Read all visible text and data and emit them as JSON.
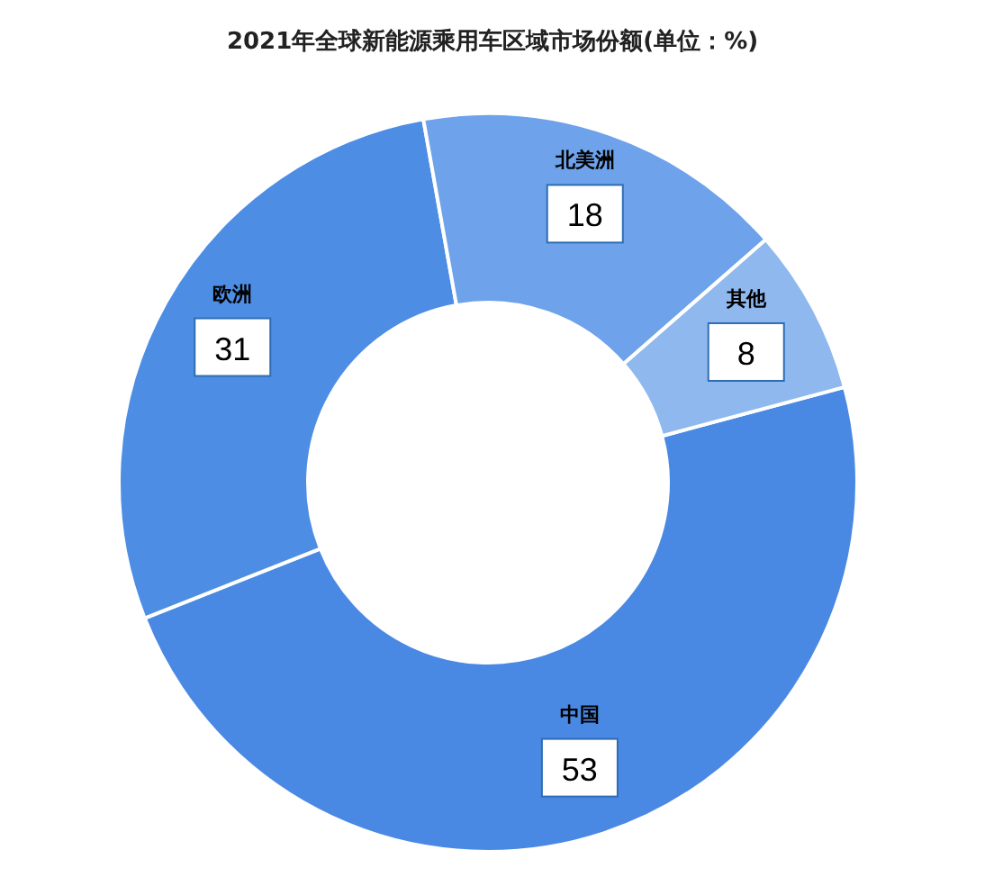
{
  "chart_data": {
    "type": "donut",
    "title": "2021年全球新能源乘用车区域市场份额(单位：%)",
    "categories": [
      "中国",
      "欧洲",
      "北美洲",
      "其他"
    ],
    "values": [
      53,
      31,
      18,
      8
    ],
    "colors": [
      "#4a89e3",
      "#4d8ee4",
      "#6ea2ea",
      "#8fb8ef"
    ],
    "data_labels": true
  }
}
